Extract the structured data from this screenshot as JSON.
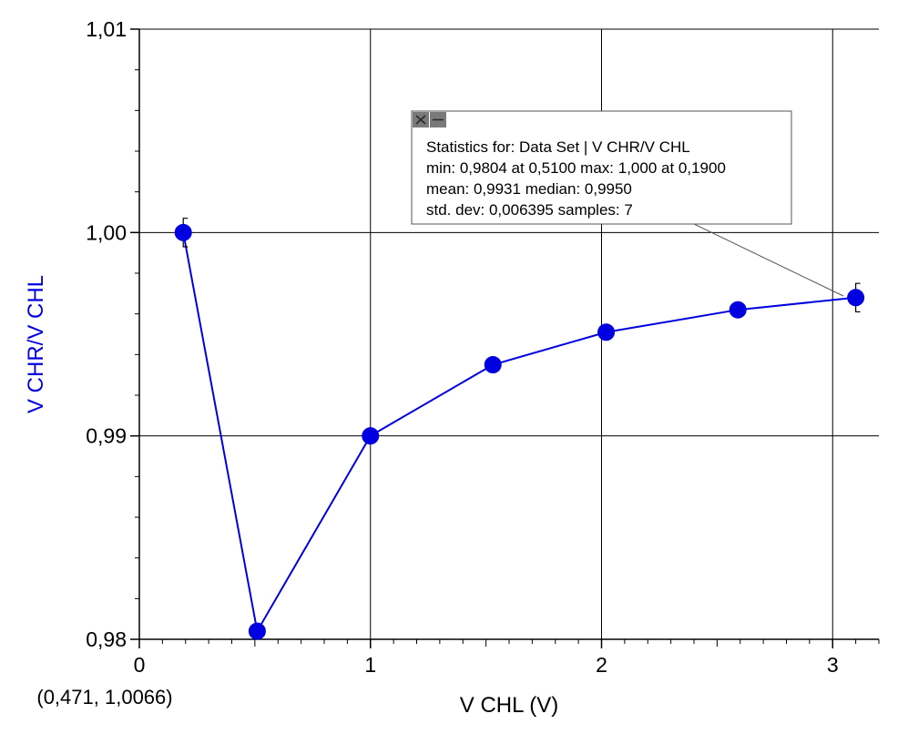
{
  "chart_data": {
    "type": "line",
    "xlabel": "V CHL (V)",
    "ylabel": "V CHR/V CHL",
    "xlim": [
      0,
      3.2
    ],
    "ylim": [
      0.98,
      1.01
    ],
    "x_ticks": [
      0,
      1,
      2,
      3
    ],
    "x_tick_labels": [
      "0",
      "1",
      "2",
      "3"
    ],
    "y_ticks": [
      0.98,
      0.99,
      1.0,
      1.01
    ],
    "y_tick_labels": [
      "0,98",
      "0,99",
      "1,00",
      "1,01"
    ],
    "grid": true,
    "series": [
      {
        "x": [
          0.19,
          0.51,
          1.0,
          1.53,
          2.02,
          2.59,
          3.1
        ],
        "y": [
          1.0,
          0.9804,
          0.99,
          0.9935,
          0.9951,
          0.9962,
          0.9968
        ],
        "color": "#0000e0"
      }
    ],
    "error_bars": [
      {
        "x": 0.19,
        "y": 1.0,
        "err": 0.0007
      },
      {
        "x": 3.1,
        "y": 0.9968,
        "err": 0.0007
      }
    ],
    "cursor_readout": "(0,471, 1,0066)",
    "stats_box": {
      "line1": "Statistics for: Data Set | V CHR/V CHL",
      "line2": "min: 0,9804 at 0,5100 max: 1,000 at 0,1900",
      "line3": "mean: 0,9931 median: 0,9950",
      "line4": "std. dev: 0,006395 samples: 7"
    }
  }
}
